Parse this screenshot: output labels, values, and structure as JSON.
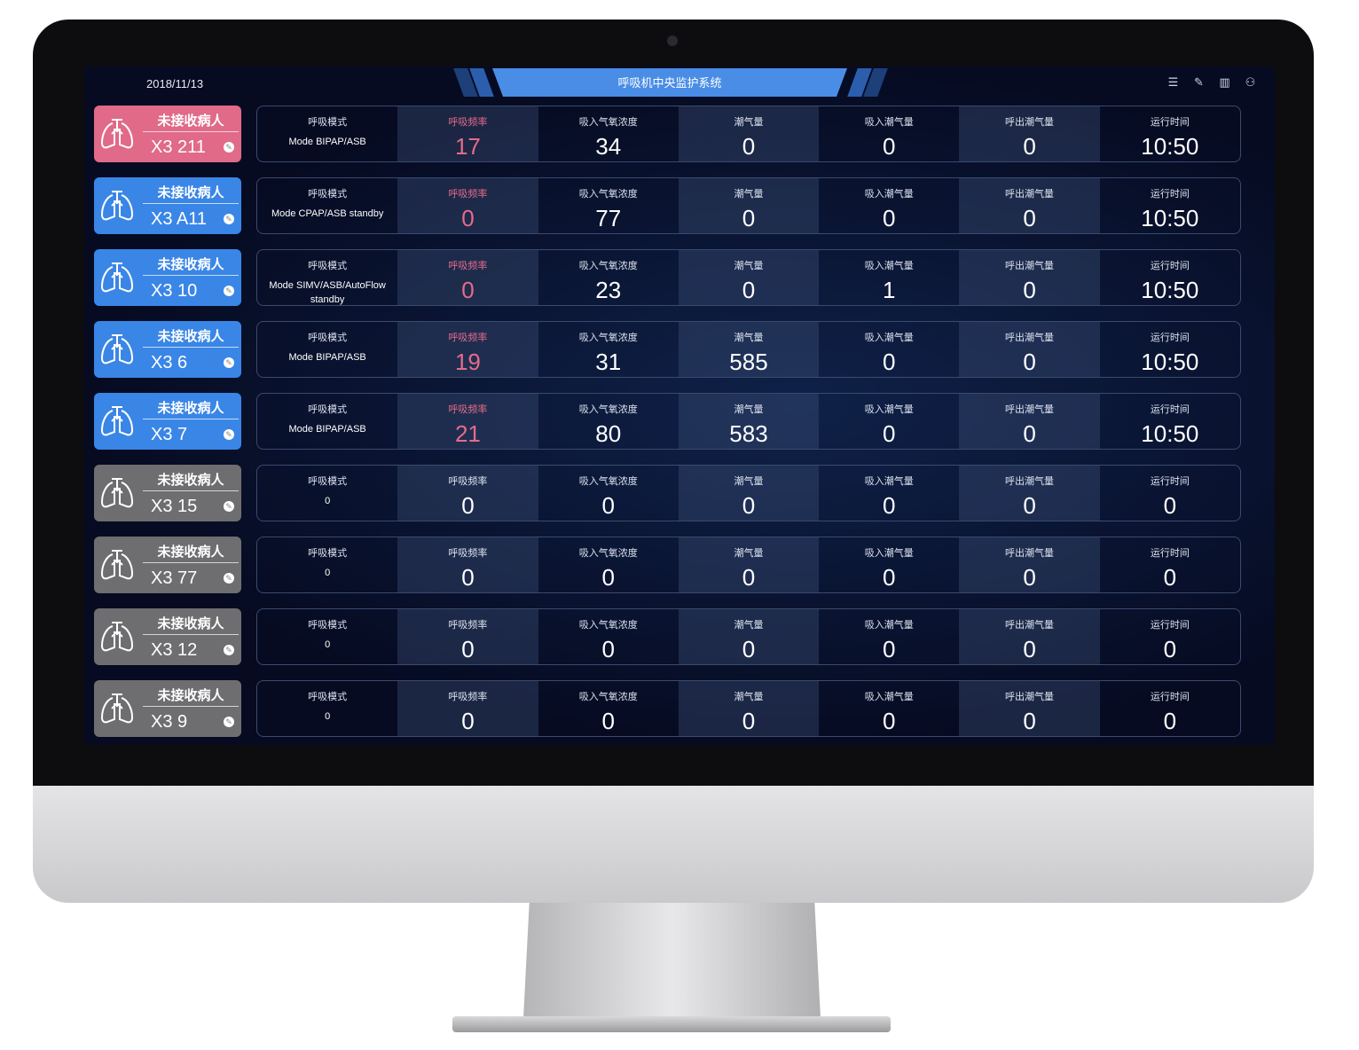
{
  "header": {
    "date": "2018/11/13",
    "title": "呼吸机中央监护系统",
    "icons": [
      "list-icon",
      "edit-icon",
      "layout-icon",
      "user-icon"
    ]
  },
  "labels": [
    "呼吸模式",
    "呼吸频率",
    "吸入气氧浓度",
    "潮气量",
    "吸入潮气量",
    "呼出潮气量",
    "运行时间"
  ],
  "colors": {
    "alert": "#e06a87",
    "active": "#3a86e6",
    "inactive": "#6e6e70",
    "alert_text": "#e66b8a"
  },
  "rows": [
    {
      "status": "alert",
      "title": "未接收病人",
      "id": "X3 211",
      "mode": "Mode BIPAP/ASB",
      "values": [
        "17",
        "34",
        "0",
        "0",
        "0",
        "10:50"
      ]
    },
    {
      "status": "active",
      "title": "未接收病人",
      "id": "X3 A11",
      "mode": "Mode CPAP/ASB standby",
      "values": [
        "0",
        "77",
        "0",
        "0",
        "0",
        "10:50"
      ]
    },
    {
      "status": "active",
      "title": "未接收病人",
      "id": "X3 10",
      "mode": "Mode SIMV/ASB/AutoFlow standby",
      "values": [
        "0",
        "23",
        "0",
        "1",
        "0",
        "10:50"
      ]
    },
    {
      "status": "active",
      "title": "未接收病人",
      "id": "X3 6",
      "mode": "Mode BIPAP/ASB",
      "values": [
        "19",
        "31",
        "585",
        "0",
        "0",
        "10:50"
      ]
    },
    {
      "status": "active",
      "title": "未接收病人",
      "id": "X3 7",
      "mode": "Mode BIPAP/ASB",
      "values": [
        "21",
        "80",
        "583",
        "0",
        "0",
        "10:50"
      ]
    },
    {
      "status": "inactive",
      "title": "未接收病人",
      "id": "X3 15",
      "mode": "0",
      "values": [
        "0",
        "0",
        "0",
        "0",
        "0",
        "0"
      ]
    },
    {
      "status": "inactive",
      "title": "未接收病人",
      "id": "X3 77",
      "mode": "0",
      "values": [
        "0",
        "0",
        "0",
        "0",
        "0",
        "0"
      ]
    },
    {
      "status": "inactive",
      "title": "未接收病人",
      "id": "X3 12",
      "mode": "0",
      "values": [
        "0",
        "0",
        "0",
        "0",
        "0",
        "0"
      ]
    },
    {
      "status": "inactive",
      "title": "未接收病人",
      "id": "X3 9",
      "mode": "0",
      "values": [
        "0",
        "0",
        "0",
        "0",
        "0",
        "0"
      ]
    }
  ]
}
